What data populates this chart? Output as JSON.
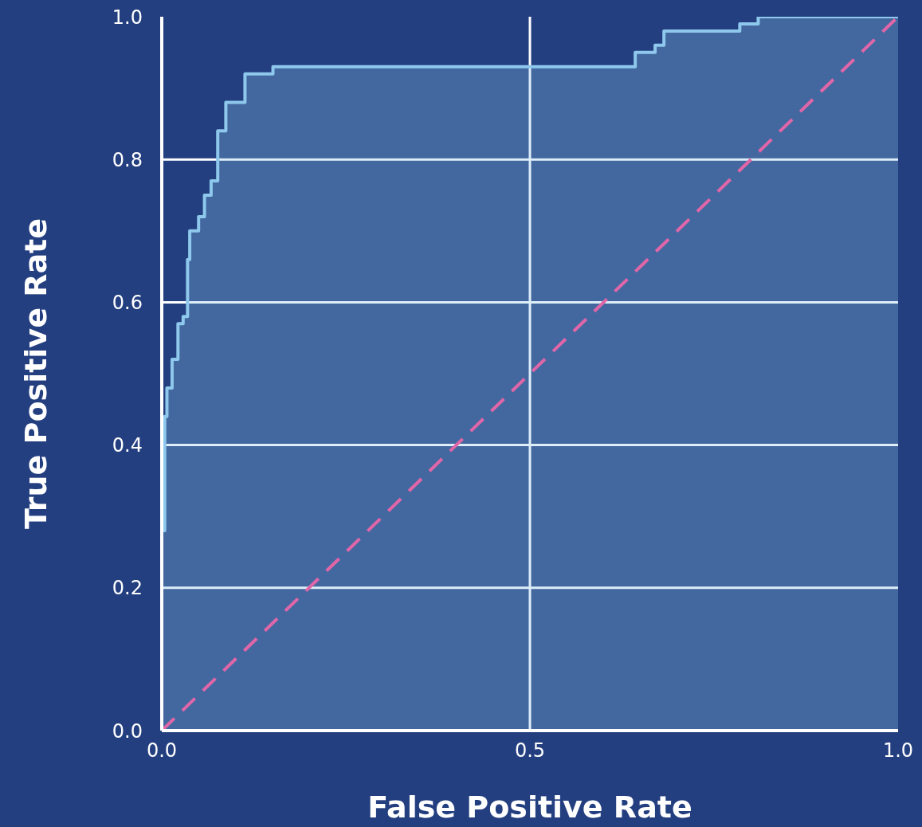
{
  "chart_data": {
    "type": "step",
    "xlabel": "False Positive Rate",
    "ylabel": "True Positive Rate",
    "xlim": [
      0,
      1
    ],
    "ylim": [
      0,
      1
    ],
    "xticks": [
      {
        "value": 0,
        "label": "0.0"
      },
      {
        "value": 0.5,
        "label": "0.5"
      },
      {
        "value": 1,
        "label": "1.0"
      }
    ],
    "yticks": [
      {
        "value": 0,
        "label": "0.0"
      },
      {
        "value": 0.2,
        "label": "0.2"
      },
      {
        "value": 0.4,
        "label": "0.4"
      },
      {
        "value": 0.6,
        "label": "0.6"
      },
      {
        "value": 0.8,
        "label": "0.8"
      },
      {
        "value": 1,
        "label": "1.0"
      }
    ],
    "grid": true,
    "series": [
      {
        "color": "#8ec8ec",
        "x": [
          0,
          0,
          0.004,
          0.007,
          0.014,
          0.022,
          0.029,
          0.035,
          0.035,
          0.038,
          0.05,
          0.058,
          0.067,
          0.076,
          0.087,
          0.113,
          0.151,
          0.643,
          0.67,
          0.682,
          0.785,
          0.81,
          1
        ],
        "values": [
          0,
          0.28,
          0.44,
          0.48,
          0.52,
          0.57,
          0.58,
          0.59,
          0.66,
          0.7,
          0.72,
          0.75,
          0.77,
          0.84,
          0.88,
          0.92,
          0.93,
          0.95,
          0.96,
          0.98,
          0.99,
          1,
          1
        ]
      },
      {
        "type": "line",
        "color": "#e066a8",
        "line_style": "dashed",
        "x": [
          0,
          1
        ],
        "values": [
          0,
          1
        ]
      }
    ]
  }
}
